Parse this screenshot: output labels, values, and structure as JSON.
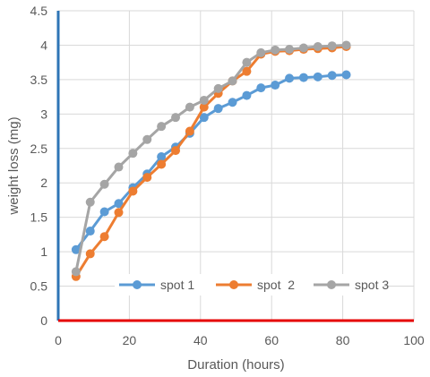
{
  "chart_data": {
    "type": "line",
    "title": "",
    "xlabel": "Duration (hours)",
    "ylabel": "weight loss (mg)",
    "xlim": [
      0,
      100
    ],
    "ylim": [
      0,
      4.5
    ],
    "xticks": [
      0,
      20,
      40,
      60,
      80,
      100
    ],
    "yticks": [
      0,
      0.5,
      1,
      1.5,
      2,
      2.5,
      3,
      3.5,
      4,
      4.5
    ],
    "xtick_labels": [
      "0",
      "20",
      "40",
      "60",
      "80",
      "100"
    ],
    "ytick_labels": [
      "0",
      "0.5",
      "1",
      "1.5",
      "2",
      "2.5",
      "3",
      "3.5",
      "4",
      "4.5"
    ],
    "grid": true,
    "legend_position": "bottom-inside",
    "axis_colors": {
      "x": "#e60000",
      "y": "#2e75b6"
    },
    "series": [
      {
        "name": "spot 1",
        "color": "#5b9bd5",
        "x": [
          5,
          9,
          13,
          17,
          21,
          25,
          29,
          33,
          37,
          41,
          45,
          49,
          53,
          57,
          61,
          65,
          69,
          73,
          77,
          81
        ],
        "y": [
          1.03,
          1.3,
          1.58,
          1.7,
          1.93,
          2.13,
          2.38,
          2.52,
          2.72,
          2.95,
          3.08,
          3.17,
          3.27,
          3.38,
          3.42,
          3.52,
          3.53,
          3.54,
          3.56,
          3.57
        ]
      },
      {
        "name": "spot  2",
        "color": "#ed7d31",
        "x": [
          5,
          9,
          13,
          17,
          21,
          25,
          29,
          33,
          37,
          41,
          45,
          49,
          53,
          57,
          61,
          65,
          69,
          73,
          77,
          81
        ],
        "y": [
          0.64,
          0.97,
          1.22,
          1.57,
          1.88,
          2.08,
          2.27,
          2.47,
          2.75,
          3.1,
          3.3,
          3.48,
          3.62,
          3.87,
          3.91,
          3.92,
          3.94,
          3.95,
          3.96,
          3.98
        ]
      },
      {
        "name": "spot 3",
        "color": "#a5a5a5",
        "x": [
          5,
          9,
          13,
          17,
          21,
          25,
          29,
          33,
          37,
          41,
          45,
          49,
          53,
          57,
          61,
          65,
          69,
          73,
          77,
          81
        ],
        "y": [
          0.71,
          1.72,
          1.98,
          2.23,
          2.43,
          2.63,
          2.82,
          2.95,
          3.1,
          3.2,
          3.37,
          3.48,
          3.75,
          3.89,
          3.93,
          3.94,
          3.96,
          3.98,
          3.99,
          4.0
        ]
      }
    ]
  }
}
